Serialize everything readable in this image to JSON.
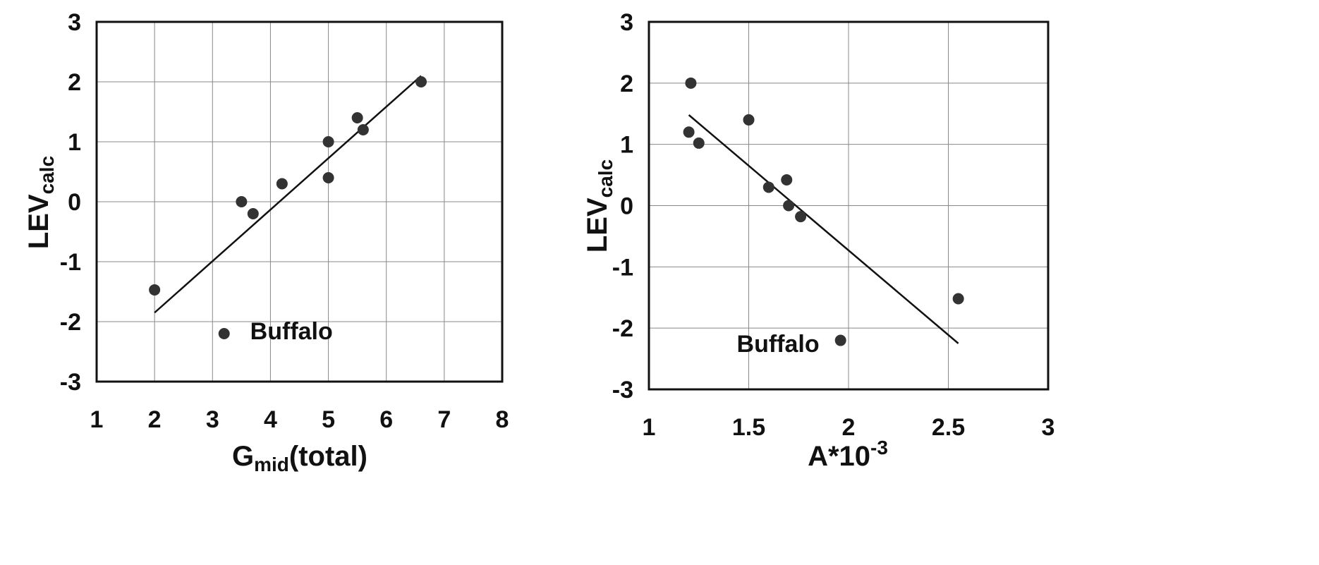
{
  "chart_data": [
    {
      "type": "scatter",
      "title": "",
      "xlabel": {
        "main": "G",
        "sub": "mid",
        "rest": "(total)"
      },
      "ylabel": {
        "main": "LEV",
        "sub": "calc"
      },
      "xlim": [
        1,
        8
      ],
      "ylim": [
        -3,
        3
      ],
      "xticks": [
        "1",
        "2",
        "3",
        "4",
        "5",
        "6",
        "7",
        "8"
      ],
      "yticks": [
        "3",
        "2",
        "1",
        "0",
        "-1",
        "-2",
        "-3"
      ],
      "grid": true,
      "x": [
        2.0,
        3.2,
        3.5,
        3.7,
        4.2,
        5.0,
        5.0,
        5.5,
        5.6,
        6.6
      ],
      "y": [
        -1.47,
        -2.2,
        0.0,
        -0.2,
        0.3,
        1.0,
        0.4,
        1.4,
        1.2,
        2.0
      ],
      "fit_line": {
        "x": [
          2.0,
          6.6
        ],
        "y": [
          -1.85,
          2.1
        ]
      },
      "annotations": [
        {
          "text": "Buffalo",
          "x": 3.65,
          "y": -2.15
        }
      ]
    },
    {
      "type": "scatter",
      "title": "",
      "xlabel": {
        "main": "A*10",
        "sup": "-3"
      },
      "ylabel": {
        "main": "LEV",
        "sub": "calc"
      },
      "xlim": [
        1,
        3
      ],
      "ylim": [
        -3,
        3
      ],
      "xticks": [
        "1",
        "1.5",
        "2",
        "2.5",
        "3"
      ],
      "yticks": [
        "3",
        "2",
        "1",
        "0",
        "-1",
        "-2",
        "-3"
      ],
      "grid": true,
      "x": [
        1.21,
        1.2,
        1.25,
        1.5,
        1.6,
        1.69,
        1.7,
        1.76,
        1.96,
        2.55
      ],
      "y": [
        2.0,
        1.2,
        1.02,
        1.4,
        0.3,
        0.42,
        0.0,
        -0.18,
        -2.2,
        -1.52
      ],
      "fit_line": {
        "x": [
          1.2,
          2.55
        ],
        "y": [
          1.48,
          -2.25
        ]
      },
      "annotations": [
        {
          "text": "Buffalo",
          "x": 1.44,
          "y": -2.25
        }
      ]
    }
  ]
}
